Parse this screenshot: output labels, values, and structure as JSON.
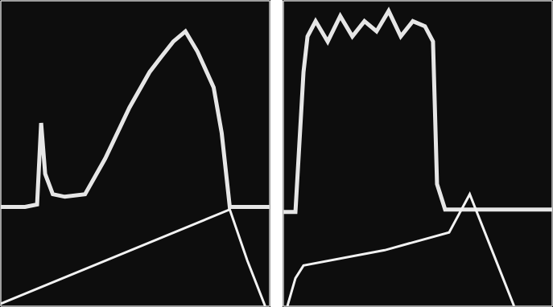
{
  "chart_data": [
    {
      "type": "line",
      "grid": true,
      "tick_labels": false,
      "xlim": [
        0,
        6
      ],
      "xticks": [
        0,
        1,
        2,
        3,
        4,
        5,
        6
      ],
      "ylim": [
        0,
        6
      ],
      "yticks": [
        0,
        1,
        2,
        3,
        4,
        5,
        6
      ],
      "series": [
        {
          "color": "#e6e6e6",
          "x": [
            0,
            0.54,
            0.81,
            0.9,
            0.99,
            1.16,
            1.43,
            1.88,
            2.33,
            2.87,
            3.32,
            3.58,
            3.85,
            4.12,
            4.39,
            4.75,
            4.93,
            5.11,
            6
          ],
          "values": [
            1.95,
            1.95,
            2.0,
            3.6,
            2.6,
            2.2,
            2.15,
            2.2,
            2.9,
            3.9,
            4.6,
            4.9,
            5.2,
            5.4,
            5.0,
            4.3,
            3.4,
            1.95,
            1.95
          ]
        },
        {
          "color": "#f2f2f2",
          "x": [
            0,
            5.11,
            5.5,
            5.9
          ],
          "values": [
            0.05,
            1.9,
            0.9,
            0
          ]
        }
      ]
    },
    {
      "type": "line",
      "grid": true,
      "tick_labels": false,
      "xlim": [
        0,
        6
      ],
      "xticks": [
        0,
        1,
        2,
        3,
        4,
        5,
        6
      ],
      "ylim": [
        0,
        6
      ],
      "yticks": [
        0,
        1,
        2,
        3,
        4,
        5,
        6
      ],
      "series": [
        {
          "color": "#e6e6e6",
          "x": [
            0,
            0.27,
            0.45,
            0.54,
            0.72,
            0.99,
            1.27,
            1.54,
            1.81,
            2.08,
            2.35,
            2.62,
            2.89,
            3.16,
            3.34,
            3.43,
            3.61,
            6
          ],
          "values": [
            1.85,
            1.85,
            4.6,
            5.3,
            5.6,
            5.2,
            5.7,
            5.3,
            5.6,
            5.4,
            5.8,
            5.3,
            5.6,
            5.5,
            5.2,
            2.4,
            1.9,
            1.9
          ]
        },
        {
          "color": "#f2f2f2",
          "x": [
            0.09,
            0.27,
            0.45,
            2.26,
            3.7,
            4.16,
            4.7,
            5.15
          ],
          "values": [
            0,
            0.55,
            0.8,
            1.1,
            1.45,
            2.2,
            1.0,
            0
          ]
        }
      ]
    }
  ]
}
